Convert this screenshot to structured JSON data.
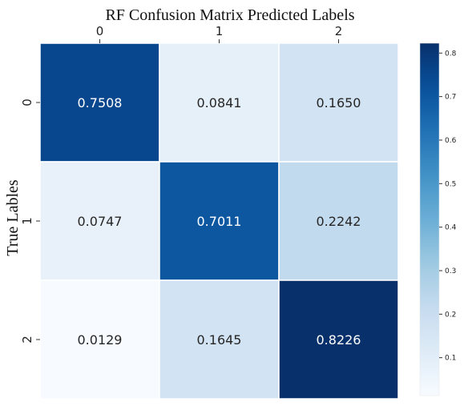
{
  "chart_data": {
    "type": "heatmap",
    "title": "RF Confusion Matrix Predicted Labels",
    "xlabel": "",
    "ylabel": "True Lables",
    "x_categories": [
      "0",
      "1",
      "2"
    ],
    "y_categories": [
      "0",
      "1",
      "2"
    ],
    "values": [
      [
        0.7508,
        0.0841,
        0.165
      ],
      [
        0.0747,
        0.7011,
        0.2242
      ],
      [
        0.0129,
        0.1645,
        0.8226
      ]
    ],
    "value_labels": [
      [
        "0.7508",
        "0.0841",
        "0.1650"
      ],
      [
        "0.0747",
        "0.7011",
        "0.2242"
      ],
      [
        "0.0129",
        "0.1645",
        "0.8226"
      ]
    ],
    "colorbar": {
      "range": [
        0.0129,
        0.8226
      ],
      "ticks": [
        0.1,
        0.2,
        0.3,
        0.4,
        0.5,
        0.6,
        0.7,
        0.8
      ],
      "tick_labels": [
        "0.1",
        "0.2",
        "0.3",
        "0.4",
        "0.5",
        "0.6",
        "0.7",
        "0.8"
      ]
    },
    "colormap": "Blues",
    "colors": {
      "low": "#f7fbff",
      "high": "#08306b"
    },
    "x_ticks_position": "top",
    "grid": false
  }
}
